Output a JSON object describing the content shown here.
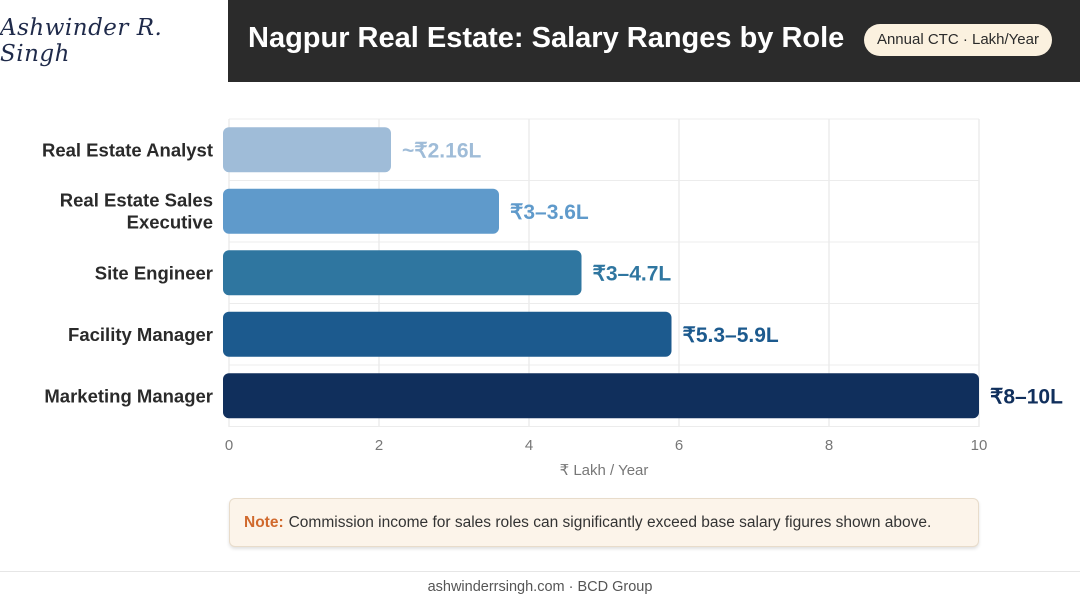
{
  "brand": {
    "name": "Ashwinder R. Singh"
  },
  "header": {
    "title": "Nagpur Real Estate: Salary Ranges by Role",
    "badge": "Annual CTC · Lakh/Year"
  },
  "chart_data": {
    "type": "bar",
    "orientation": "horizontal",
    "categories": [
      "Real Estate Analyst",
      "Real Estate Sales Executive",
      "Site Engineer",
      "Facility Manager",
      "Marketing Manager"
    ],
    "values": [
      2.16,
      3.6,
      4.7,
      5.9,
      10
    ],
    "value_labels": [
      "~₹2.16L",
      "₹3–3.6L",
      "₹3–4.7L",
      "₹5.3–5.9L",
      "₹8–10L"
    ],
    "colors": [
      "#9fbcd8",
      "#5f9acb",
      "#2f76a0",
      "#1c5a8e",
      "#102f5c"
    ],
    "xlabel": "₹ Lakh / Year",
    "xlim": [
      0,
      10
    ],
    "xticks": [
      "0",
      "2",
      "4",
      "6",
      "8",
      "10"
    ],
    "grid": true
  },
  "note": {
    "label": "Note:",
    "text": "Commission income for sales roles can significantly exceed base salary figures shown above."
  },
  "footer": {
    "text": "ashwinderrsingh.com · BCD Group"
  }
}
